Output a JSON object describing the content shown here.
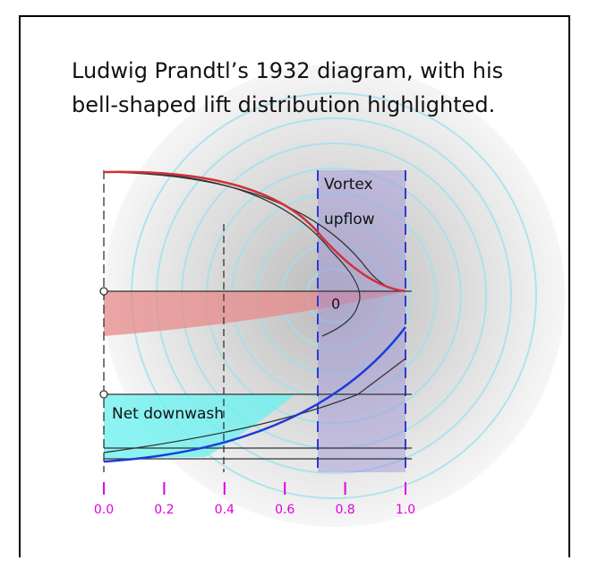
{
  "caption": {
    "line1": "Ludwig Prandtl’s 1932 diagram, with his",
    "line2": "bell-shaped lift distribution highlighted."
  },
  "labels": {
    "vortex_line1": "Vortex",
    "vortex_line2": "upflow",
    "zero": "0",
    "net_downwash": "Net downwash"
  },
  "axis": {
    "ticks": [
      "0.0",
      "0.2",
      "0.4",
      "0.6",
      "0.8",
      "1.0"
    ]
  }
}
